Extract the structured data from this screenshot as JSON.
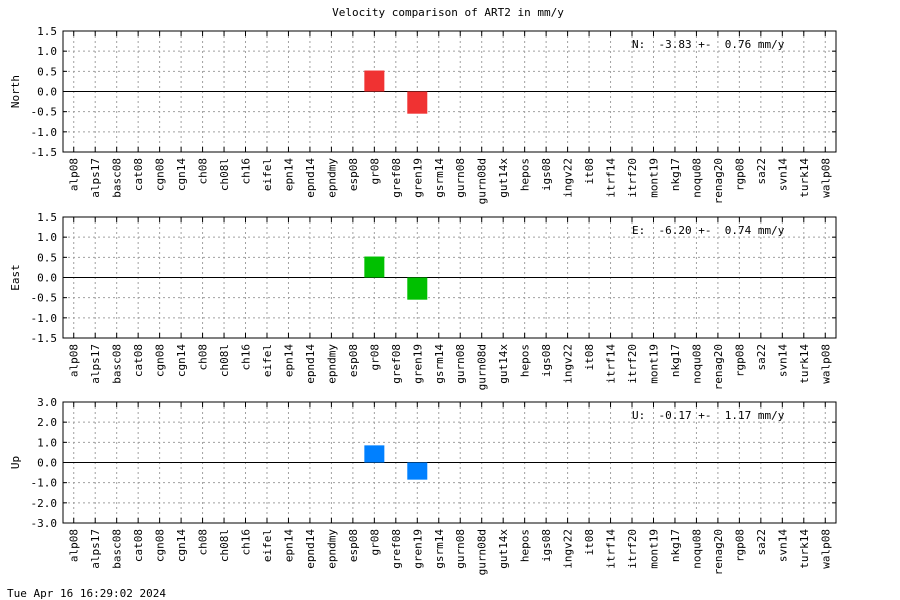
{
  "title": "Velocity comparison of ART2 in mm/y",
  "timestamp": "Tue Apr 16 16:29:02 2024",
  "chart_data": [
    {
      "type": "bar",
      "ylabel": "North",
      "ylim": [
        -1.5,
        1.5
      ],
      "yticks": [
        "1.5",
        "1.0",
        "0.5",
        "0.0",
        "-0.5",
        "-1.0",
        "-1.5"
      ],
      "grid": true,
      "annotation": "N:  -3.83 +-  0.76 mm/y",
      "color": "#f03232",
      "categories": [
        "alp08",
        "alps17",
        "basc08",
        "cat08",
        "cgn08",
        "cgn14",
        "ch08",
        "ch08l",
        "ch16",
        "eifel",
        "epn14",
        "epnd14",
        "epndmy",
        "esp08",
        "gr08",
        "gref08",
        "gren19",
        "gsrm14",
        "gurn08",
        "gurn08d",
        "gut14x",
        "hepos",
        "igs08",
        "ingv22",
        "it08",
        "itrf14",
        "itrf20",
        "mont19",
        "nkg17",
        "noqu08",
        "renag20",
        "rgp08",
        "sa22",
        "svn14",
        "turk14",
        "walp08"
      ],
      "values": [
        null,
        null,
        null,
        null,
        null,
        null,
        null,
        null,
        null,
        null,
        null,
        null,
        null,
        null,
        0.52,
        null,
        -0.55,
        null,
        null,
        null,
        null,
        null,
        null,
        null,
        null,
        null,
        null,
        null,
        null,
        null,
        null,
        null,
        null,
        null,
        null,
        null
      ]
    },
    {
      "type": "bar",
      "ylabel": "East",
      "ylim": [
        -1.5,
        1.5
      ],
      "yticks": [
        "1.5",
        "1.0",
        "0.5",
        "0.0",
        "-0.5",
        "-1.0",
        "-1.5"
      ],
      "grid": true,
      "annotation": "E:  -6.20 +-  0.74 mm/y",
      "color": "#00c000",
      "categories": [
        "alp08",
        "alps17",
        "basc08",
        "cat08",
        "cgn08",
        "cgn14",
        "ch08",
        "ch08l",
        "ch16",
        "eifel",
        "epn14",
        "epnd14",
        "epndmy",
        "esp08",
        "gr08",
        "gref08",
        "gren19",
        "gsrm14",
        "gurn08",
        "gurn08d",
        "gut14x",
        "hepos",
        "igs08",
        "ingv22",
        "it08",
        "itrf14",
        "itrf20",
        "mont19",
        "nkg17",
        "noqu08",
        "renag20",
        "rgp08",
        "sa22",
        "svn14",
        "turk14",
        "walp08"
      ],
      "values": [
        null,
        null,
        null,
        null,
        null,
        null,
        null,
        null,
        null,
        null,
        null,
        null,
        null,
        null,
        0.52,
        null,
        -0.55,
        null,
        null,
        null,
        null,
        null,
        null,
        null,
        null,
        null,
        null,
        null,
        null,
        null,
        null,
        null,
        null,
        null,
        null,
        null
      ]
    },
    {
      "type": "bar",
      "ylabel": "Up",
      "ylim": [
        -3.0,
        3.0
      ],
      "yticks": [
        "3.0",
        "2.0",
        "1.0",
        "0.0",
        "-1.0",
        "-2.0",
        "-3.0"
      ],
      "grid": true,
      "annotation": "U:  -0.17 +-  1.17 mm/y",
      "color": "#0080ff",
      "categories": [
        "alp08",
        "alps17",
        "basc08",
        "cat08",
        "cgn08",
        "cgn14",
        "ch08",
        "ch08l",
        "ch16",
        "eifel",
        "epn14",
        "epnd14",
        "epndmy",
        "esp08",
        "gr08",
        "gref08",
        "gren19",
        "gsrm14",
        "gurn08",
        "gurn08d",
        "gut14x",
        "hepos",
        "igs08",
        "ingv22",
        "it08",
        "itrf14",
        "itrf20",
        "mont19",
        "nkg17",
        "noqu08",
        "renag20",
        "rgp08",
        "sa22",
        "svn14",
        "turk14",
        "walp08"
      ],
      "values": [
        null,
        null,
        null,
        null,
        null,
        null,
        null,
        null,
        null,
        null,
        null,
        null,
        null,
        null,
        0.85,
        null,
        -0.85,
        null,
        null,
        null,
        null,
        null,
        null,
        null,
        null,
        null,
        null,
        null,
        null,
        null,
        null,
        null,
        null,
        null,
        null,
        null
      ]
    }
  ]
}
